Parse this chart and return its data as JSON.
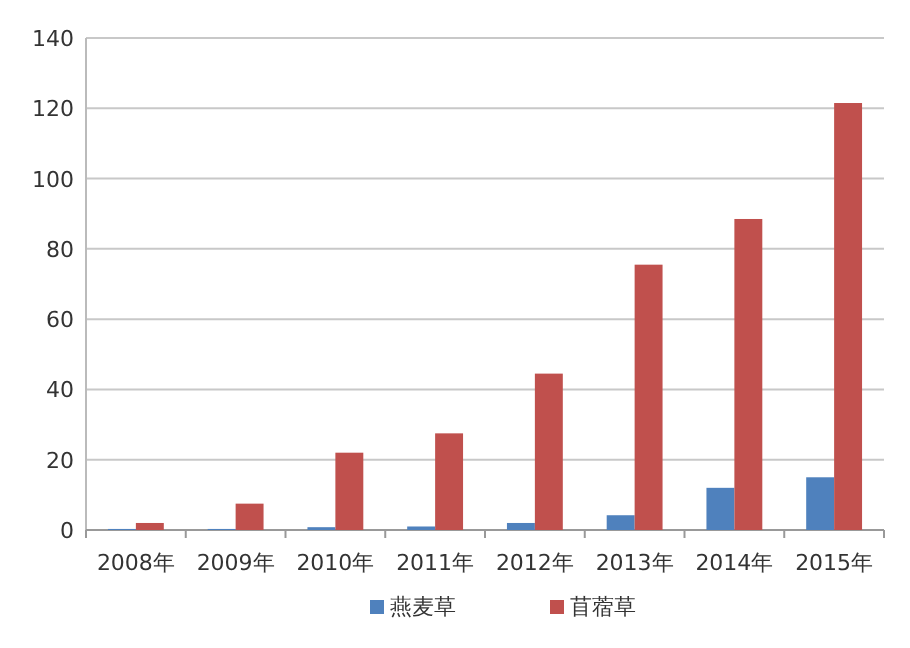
{
  "chart_data": {
    "type": "bar",
    "categories": [
      "2008年",
      "2009年",
      "2010年",
      "2011年",
      "2012年",
      "2013年",
      "2014年",
      "2015年"
    ],
    "series": [
      {
        "name": "燕麦草",
        "color": "#4f81bd",
        "values": [
          0.3,
          0.3,
          0.8,
          1,
          2,
          4.2,
          12,
          15
        ]
      },
      {
        "name": "苜蓿草",
        "color": "#c0504d",
        "values": [
          2,
          7.5,
          22,
          27.5,
          44.5,
          75.5,
          88.5,
          121.5
        ]
      }
    ],
    "ylim": [
      0,
      140
    ],
    "yticks": [
      0,
      20,
      40,
      60,
      80,
      100,
      120,
      140
    ],
    "grid": "y",
    "legend": "bottom"
  }
}
